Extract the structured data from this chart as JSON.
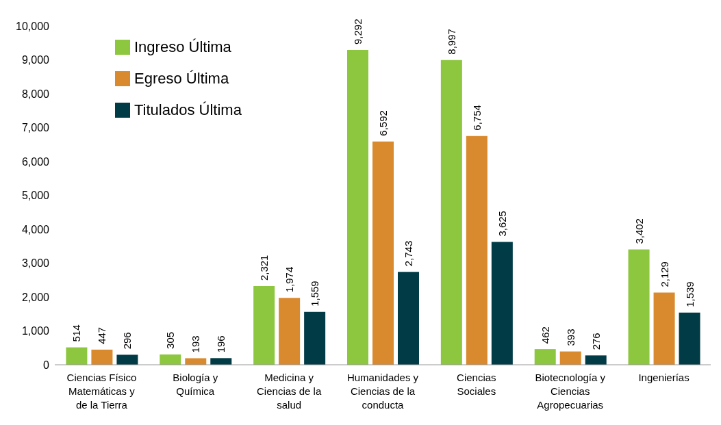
{
  "chart_data": {
    "type": "bar",
    "categories": [
      "Ciencias Físico Matemáticas y de la Tierra",
      "Biología y Química",
      "Medicina y Ciencias de la salud",
      "Humanidades y Ciencias de la conducta",
      "Ciencias Sociales",
      "Biotecnología y Ciencias Agropecuarias",
      "Ingenierías"
    ],
    "series": [
      {
        "name": "Ingreso Última",
        "color": "#8dc63f",
        "values": [
          514,
          305,
          2321,
          9292,
          8997,
          462,
          3402
        ],
        "value_labels": [
          "514",
          "305",
          "2,321",
          "9,292",
          "8,997",
          "462",
          "3,402"
        ]
      },
      {
        "name": "Egreso Última",
        "color": "#d98a2e",
        "values": [
          447,
          193,
          1974,
          6592,
          6754,
          393,
          2129
        ],
        "value_labels": [
          "447",
          "193",
          "1,974",
          "6,592",
          "6,754",
          "393",
          "2,129"
        ]
      },
      {
        "name": "Titulados Última",
        "color": "#003b46",
        "values": [
          296,
          196,
          1559,
          2743,
          3625,
          276,
          1539
        ],
        "value_labels": [
          "296",
          "196",
          "1,559",
          "2,743",
          "3,625",
          "276",
          "1,539"
        ]
      }
    ],
    "ylim": [
      0,
      10000
    ],
    "yticks": [
      0,
      {
        "value": 1000,
        "label": "1,000"
      },
      {
        "value": 2000,
        "label": "2,000"
      },
      {
        "value": 3000,
        "label": "3,000"
      },
      {
        "value": 4000,
        "label": "4,000"
      },
      {
        "value": 5000,
        "label": "5,000"
      },
      {
        "value": 6000,
        "label": "6,000"
      },
      {
        "value": 7000,
        "label": "7,000"
      },
      {
        "value": 8000,
        "label": "8,000"
      },
      {
        "value": 9000,
        "label": "9,000"
      },
      {
        "value": 10000,
        "label": "10,000"
      }
    ],
    "grid": false,
    "legend": "top left"
  }
}
